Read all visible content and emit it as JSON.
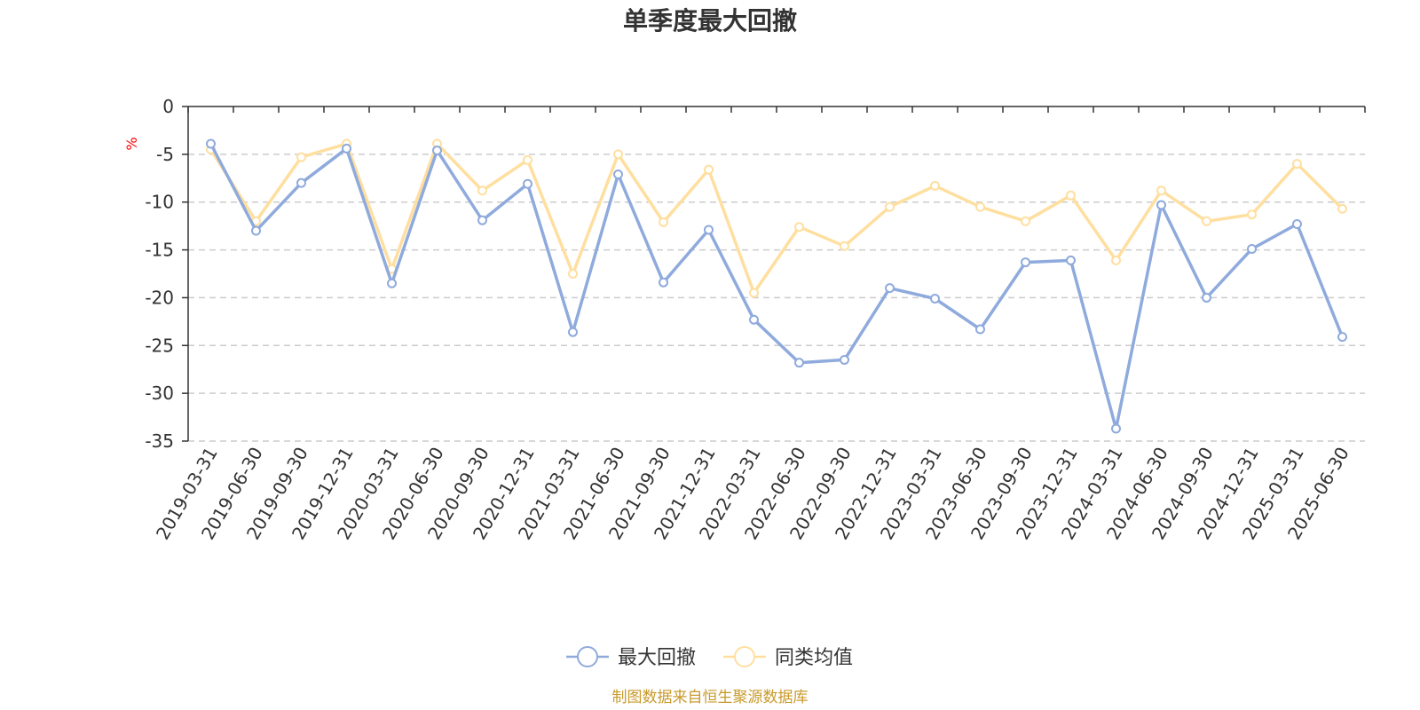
{
  "chart_data": {
    "type": "line",
    "title": "单季度最大回撤",
    "ylabel": "%",
    "ylim": [
      -35,
      0
    ],
    "yticks": [
      0,
      -5,
      -10,
      -15,
      -20,
      -25,
      -30,
      -35
    ],
    "grid": true,
    "legend_position": "bottom",
    "categories": [
      "2019-03-31",
      "2019-06-30",
      "2019-09-30",
      "2019-12-31",
      "2020-03-31",
      "2020-06-30",
      "2020-09-30",
      "2020-12-31",
      "2021-03-31",
      "2021-06-30",
      "2021-09-30",
      "2021-12-31",
      "2022-03-31",
      "2022-06-30",
      "2022-09-30",
      "2022-12-31",
      "2023-03-31",
      "2023-06-30",
      "2023-09-30",
      "2023-12-31",
      "2024-03-31",
      "2024-06-30",
      "2024-09-30",
      "2024-12-31",
      "2025-03-31",
      "2025-06-30"
    ],
    "series": [
      {
        "name": "最大回撤",
        "color": "#8faadc",
        "values": [
          -3.9,
          -13.0,
          -8.0,
          -4.4,
          -18.5,
          -4.6,
          -11.9,
          -8.1,
          -23.6,
          -7.1,
          -18.4,
          -12.9,
          -22.3,
          -26.8,
          -26.5,
          -19.0,
          -20.1,
          -23.3,
          -16.3,
          -16.1,
          -33.7,
          -10.3,
          -20.0,
          -14.9,
          -12.3,
          -24.1
        ]
      },
      {
        "name": "同类均值",
        "color": "#ffdf9f",
        "values": [
          -4.5,
          -12.0,
          -5.3,
          -3.9,
          -17.0,
          -3.9,
          -8.8,
          -5.6,
          -17.5,
          -5.0,
          -12.1,
          -6.6,
          -19.5,
          -12.6,
          -14.6,
          -10.5,
          -8.3,
          -10.5,
          -12.0,
          -9.3,
          -16.1,
          -8.8,
          -12.0,
          -11.3,
          -6.0,
          -10.7
        ]
      }
    ],
    "source_note": "制图数据来自恒生聚源数据库",
    "source_color": "#c89a2b",
    "unit_color": "#ff0000"
  }
}
